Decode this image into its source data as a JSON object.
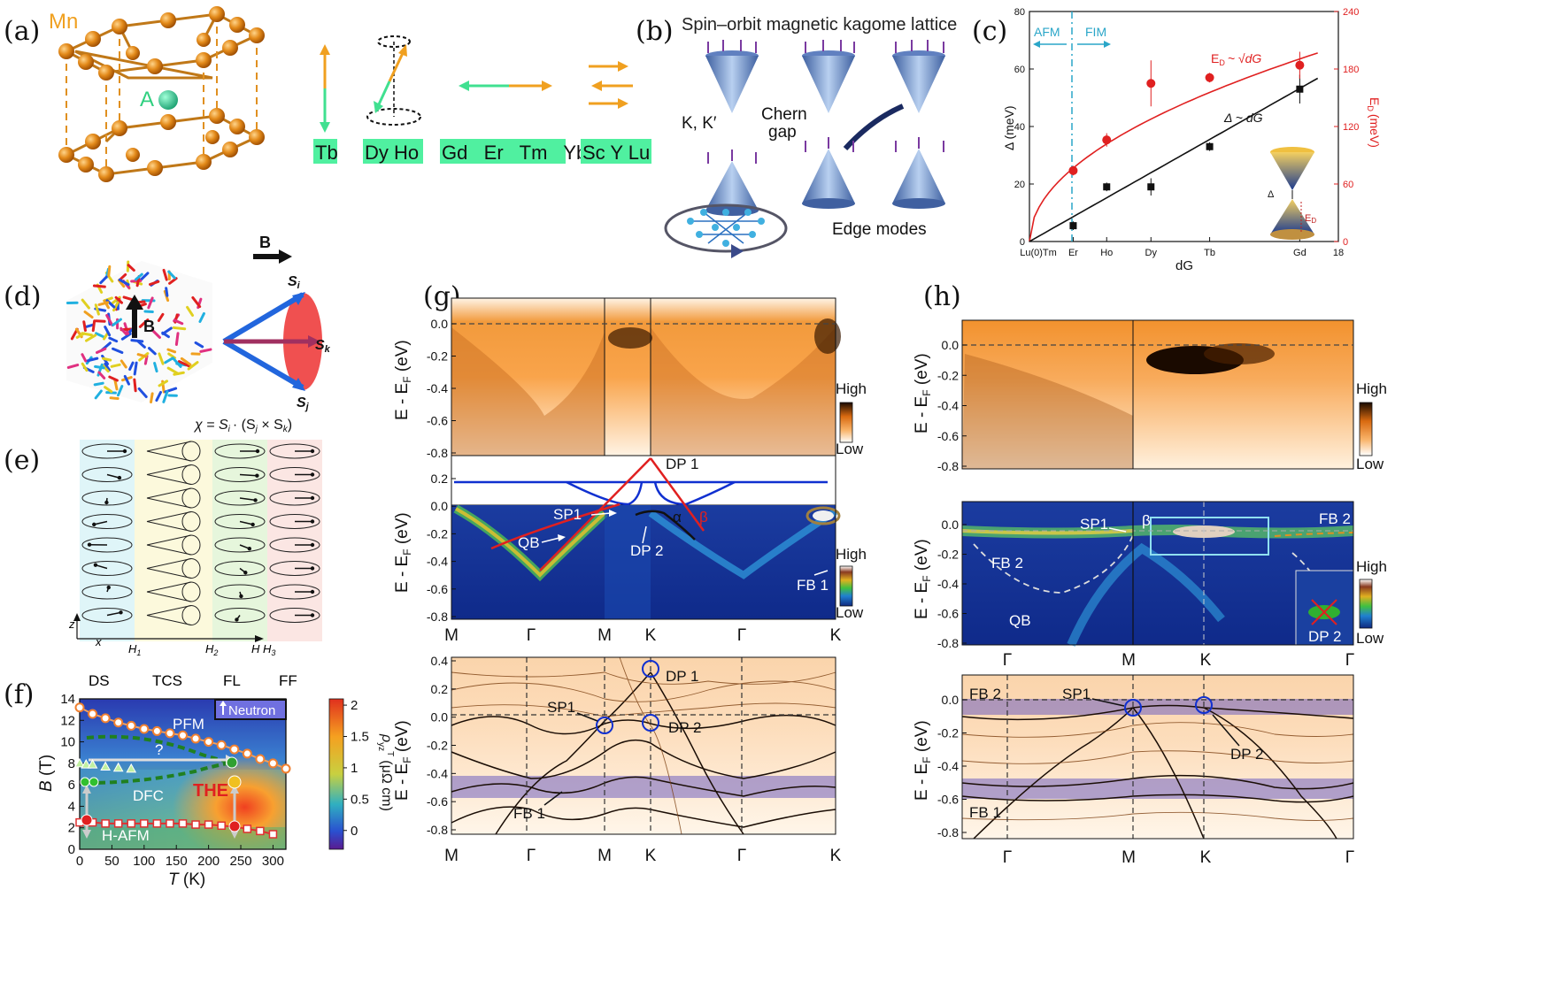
{
  "panel_labels": [
    "(a)",
    "(b)",
    "(c)",
    "(d)",
    "(e)",
    "(f)",
    "(g)",
    "(h)"
  ],
  "panel_a": {
    "mn_label": "Mn",
    "a_label": "A",
    "groups": [
      "Tb",
      "Dy Ho",
      "Gd   Er   Tm   Yb",
      "Sc Y Lu"
    ]
  },
  "panel_b": {
    "title": "Spin–orbit magnetic kagome lattice",
    "kk_label": "K, K′",
    "chern_label": [
      "Chern",
      "gap"
    ],
    "edge_label": "Edge modes"
  },
  "panel_c": {
    "afm": "AFM",
    "fim": "FIM",
    "ed_formula": "E",
    "ed_sub": "D",
    "ed_rhs": "~ √dG",
    "delta_formula": "Δ ~ dG",
    "inset_delta": "Δ",
    "inset_ed": "E",
    "ylabel_left": "Δ (meV)",
    "ylabel_right_main": "E",
    "ylabel_right_sub": "D",
    "ylabel_right_unit": "(meV)",
    "xlabel": "dG"
  },
  "panel_d": {
    "b_label": "B",
    "si": "S",
    "sk": "S",
    "sj": "S",
    "si_sub": "i",
    "sk_sub": "k",
    "sj_sub": "j",
    "chi_formula": "χ = S",
    "chi_rest": "· (S",
    "chi_tail": " × S",
    "chi_close": ")"
  },
  "panel_e": {
    "phases": [
      "DS",
      "TCS",
      "FL",
      "FF"
    ],
    "axis_z": "z",
    "axis_x": "x",
    "fields": [
      "H",
      "H",
      "H",
      "H"
    ],
    "field_subs": [
      "1",
      "2",
      "3",
      ""
    ]
  },
  "panel_f": {
    "regions": [
      "PFM",
      "DFC",
      "THE",
      "H-AFM"
    ],
    "question": "?",
    "neutron": "Neutron",
    "xlabel_main": "T",
    "xlabel_unit": " (K)",
    "ylabel_main": "B",
    "ylabel_unit": " (T)",
    "cbar_label_main": "ρ",
    "cbar_label_sub": "yz",
    "cbar_label_sup": "T",
    "cbar_label_unit": "(μΩ cm)",
    "cbar_ticks": [
      "2",
      "1.5",
      "1",
      "0.5",
      "0"
    ],
    "xticks": [
      "0",
      "50",
      "100",
      "150",
      "200",
      "250",
      "300"
    ],
    "yticks": [
      "0",
      "2",
      "4",
      "6",
      "8",
      "10",
      "12",
      "14"
    ]
  },
  "panel_g": {
    "top_yticks": [
      "0.0",
      "-0.2",
      "-0.4",
      "-0.6",
      "-0.8"
    ],
    "mid_yticks": [
      "0.2",
      "0.0",
      "-0.2",
      "-0.4",
      "-0.6",
      "-0.8"
    ],
    "bot_yticks": [
      "0.4",
      "0.3",
      "0.2",
      "0.1",
      "0.0",
      "-0.1",
      "-0.2",
      "-0.3",
      "-0.4",
      "-0.5",
      "-0.6",
      "-0.7",
      "-0.8"
    ],
    "ylabel": "E - E",
    "ylabel_sub": "F",
    "ylabel_unit": " (eV)",
    "kpath": [
      "M",
      "Γ",
      "M",
      "K",
      "Γ",
      "K"
    ],
    "annotations": [
      "DP 1",
      "SP1",
      "QB",
      "α",
      "β",
      "DP 2",
      "FB 1"
    ],
    "bot_annotations": [
      "DP 1",
      "SP1",
      "DP 2",
      "FB 1"
    ],
    "scale_high": "High",
    "scale_low": "Low"
  },
  "panel_h": {
    "top_yticks": [
      "0.0",
      "-0.2",
      "-0.4",
      "-0.6",
      "-0.8"
    ],
    "mid_yticks": [
      "0.0",
      "-0.2",
      "-0.4",
      "-0.6",
      "-0.8"
    ],
    "bot_yticks": [
      "0.0",
      "-0.2",
      "-0.4",
      "-0.6",
      "-0.8"
    ],
    "ylabel": "E - E",
    "ylabel_sub": "F",
    "ylabel_unit": " (eV)",
    "kpath": [
      "Γ",
      "M",
      "K",
      "Γ"
    ],
    "annotations": [
      "SP1",
      "β",
      "FB 2",
      "FB 2",
      "QB",
      "DP 2"
    ],
    "bot_annotations": [
      "FB 2",
      "SP1",
      "DP 2",
      "FB 1"
    ],
    "scale_high": "High",
    "scale_low": "Low"
  },
  "chart_data": [
    {
      "type": "scatter",
      "panel": "c",
      "xlabel": "dG",
      "ylabel": "Δ (meV)",
      "y2label": "E_D (meV)",
      "xlim": [
        0,
        18
      ],
      "ylim": [
        0,
        80
      ],
      "y2lim": [
        0,
        240
      ],
      "x_tick_labels": [
        "Lu(0)Tm",
        "Er",
        "Ho",
        "Dy",
        "Tb",
        "Gd",
        "18"
      ],
      "x_tick_values": [
        0,
        2.55,
        4.5,
        7.08,
        10.5,
        15.75,
        18
      ],
      "yticks": [
        0,
        20,
        40,
        60,
        80
      ],
      "y2ticks": [
        0,
        60,
        120,
        180,
        240
      ],
      "series": [
        {
          "name": "Δ",
          "x": [
            2.55,
            4.5,
            7.08,
            10.5,
            15.75
          ],
          "y": [
            5.5,
            19,
            19,
            33,
            53
          ],
          "err": [
            1.5,
            1.5,
            3,
            1.5,
            5
          ]
        },
        {
          "name": "E_D",
          "x": [
            2.55,
            4.5,
            7.08,
            10.5,
            15.75
          ],
          "y": [
            74,
            106,
            165,
            171,
            184
          ],
          "err": [
            5,
            7,
            24,
            5,
            14
          ]
        }
      ],
      "fits": [
        "Δ ~ dG",
        "E_D ~ √dG"
      ],
      "regions": [
        "AFM",
        "FIM"
      ]
    },
    {
      "type": "heatmap",
      "panel": "f",
      "xlabel": "T (K)",
      "ylabel": "B (T)",
      "xlim": [
        0,
        320
      ],
      "ylim": [
        0,
        14
      ],
      "colorbar_label": "ρ_yz^T (μΩ cm)",
      "colorbar_range": [
        -0.3,
        2.1
      ],
      "series": [
        {
          "name": "upper",
          "x": [
            0,
            20,
            40,
            60,
            80,
            100,
            120,
            140,
            160,
            180,
            200,
            220,
            240,
            260,
            280,
            300,
            320
          ],
          "y": [
            13.2,
            12.6,
            12.2,
            11.8,
            11.5,
            11.2,
            11.0,
            10.8,
            10.6,
            10.3,
            10.0,
            9.7,
            9.3,
            8.9,
            8.4,
            8.0,
            7.5
          ]
        },
        {
          "name": "triangles",
          "x": [
            0,
            10,
            20,
            40,
            60,
            80
          ],
          "y": [
            8.0,
            7.9,
            7.9,
            7.7,
            7.6,
            7.5
          ]
        },
        {
          "name": "lower",
          "x": [
            0,
            20,
            40,
            60,
            80,
            100,
            120,
            140,
            160,
            180,
            200,
            220,
            240,
            260,
            280,
            300
          ],
          "y": [
            2.5,
            2.5,
            2.4,
            2.4,
            2.4,
            2.4,
            2.4,
            2.4,
            2.4,
            2.3,
            2.3,
            2.2,
            2.1,
            1.9,
            1.7,
            1.4
          ]
        }
      ]
    }
  ]
}
